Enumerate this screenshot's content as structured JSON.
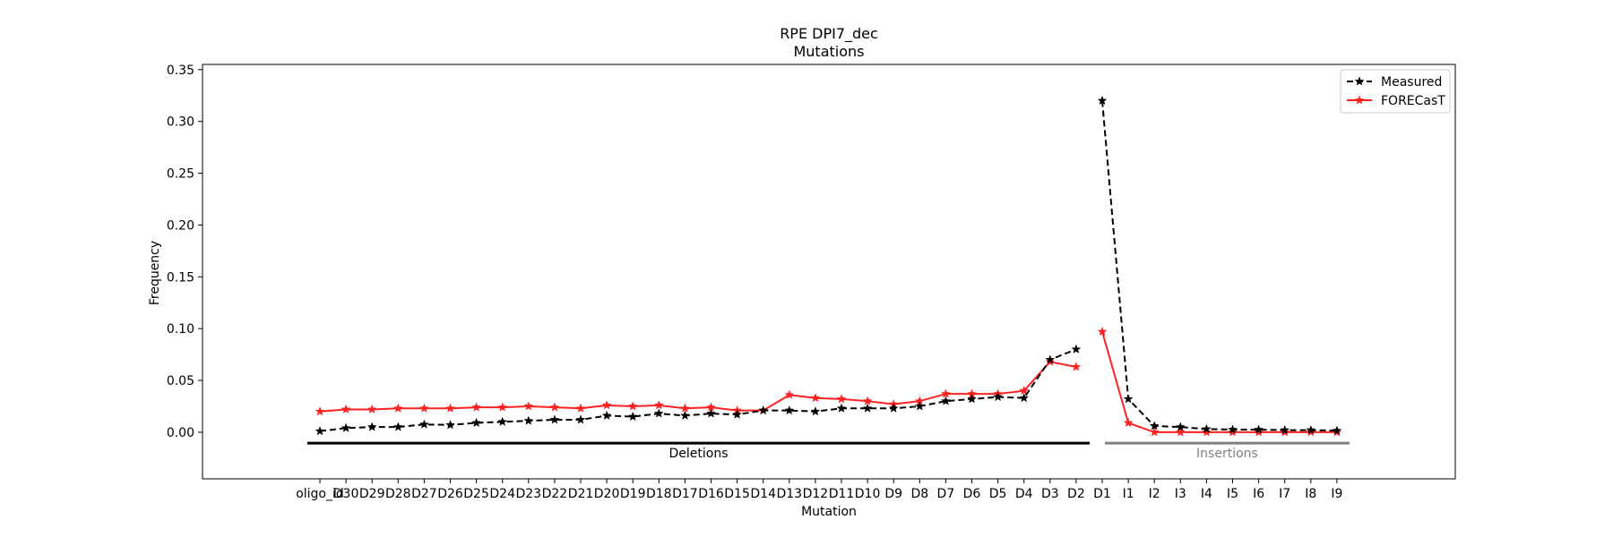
{
  "chart_data": {
    "type": "line",
    "title": "RPE DPI7_dec",
    "subtitle": "Mutations",
    "xlabel": "Mutation",
    "ylabel": "Frequency",
    "ylim": [
      -0.045,
      0.355
    ],
    "yticks": [
      0.0,
      0.05,
      0.1,
      0.15,
      0.2,
      0.25,
      0.3,
      0.35
    ],
    "ytick_labels": [
      "0.00",
      "0.05",
      "0.10",
      "0.15",
      "0.20",
      "0.25",
      "0.30",
      "0.35"
    ],
    "grid": false,
    "legend_position": "top-right",
    "deletion_categories": [
      "oligo_id",
      "D30",
      "D29",
      "D28",
      "D27",
      "D26",
      "D25",
      "D24",
      "D23",
      "D22",
      "D21",
      "D20",
      "D19",
      "D18",
      "D17",
      "D16",
      "D15",
      "D14",
      "D13",
      "D12",
      "D11",
      "D10",
      "D9",
      "D8",
      "D7",
      "D6",
      "D5",
      "D4",
      "D3",
      "D2"
    ],
    "insertion_categories": [
      "D1",
      "I1",
      "I2",
      "I3",
      "I4",
      "I5",
      "I6",
      "I7",
      "I8",
      "I9"
    ],
    "series": [
      {
        "name": "Measured",
        "color": "#000000",
        "style": "dashed",
        "marker": "star",
        "deletion_values": [
          0.001,
          0.004,
          0.005,
          0.005,
          0.0075,
          0.007,
          0.009,
          0.01,
          0.011,
          0.012,
          0.012,
          0.016,
          0.015,
          0.018,
          0.016,
          0.018,
          0.017,
          0.021,
          0.021,
          0.02,
          0.023,
          0.023,
          0.023,
          0.025,
          0.03,
          0.032,
          0.034,
          0.033,
          0.07,
          0.08
        ],
        "insertion_values": [
          0.32,
          0.032,
          0.006,
          0.005,
          0.003,
          0.0025,
          0.0025,
          0.002,
          0.002,
          0.0015
        ]
      },
      {
        "name": "FORECasT",
        "color": "#ff2222",
        "style": "solid",
        "marker": "star",
        "deletion_values": [
          0.02,
          0.022,
          0.022,
          0.023,
          0.023,
          0.023,
          0.024,
          0.024,
          0.025,
          0.024,
          0.023,
          0.026,
          0.025,
          0.026,
          0.023,
          0.024,
          0.021,
          0.021,
          0.036,
          0.033,
          0.032,
          0.03,
          0.027,
          0.03,
          0.037,
          0.037,
          0.037,
          0.04,
          0.068,
          0.063
        ],
        "insertion_values": [
          0.097,
          0.009,
          0.0,
          0.0,
          0.0,
          0.0,
          0.0,
          0.0,
          0.0,
          0.0
        ]
      }
    ],
    "group_labels": {
      "deletions": "Deletions",
      "insertions": "Insertions",
      "deletions_color": "#000000",
      "insertions_color": "#808080"
    }
  }
}
